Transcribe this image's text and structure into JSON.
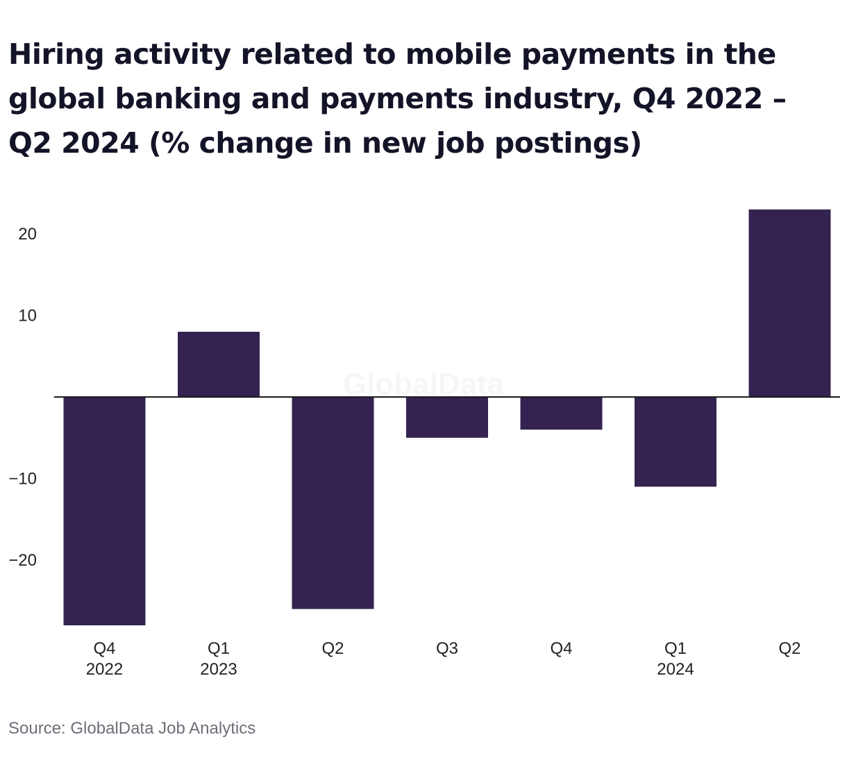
{
  "chart_data": {
    "type": "bar",
    "title": "Hiring activity related to mobile payments in the global banking and payments industry, Q4 2022 – Q2 2024 (% change in new job postings)",
    "categories": [
      {
        "quarter": "Q4",
        "year": "2022"
      },
      {
        "quarter": "Q1",
        "year": "2023"
      },
      {
        "quarter": "Q2",
        "year": ""
      },
      {
        "quarter": "Q3",
        "year": ""
      },
      {
        "quarter": "Q4",
        "year": ""
      },
      {
        "quarter": "Q1",
        "year": "2024"
      },
      {
        "quarter": "Q2",
        "year": ""
      }
    ],
    "values": [
      -28,
      8,
      -26,
      -5,
      -4,
      -11,
      23
    ],
    "ylim": [
      -28,
      23
    ],
    "yticks": [
      20,
      10,
      -10,
      -20
    ],
    "ytick_labels": [
      "20",
      "10",
      "−10",
      "−20"
    ],
    "bar_color": "#342350",
    "xlabel": "",
    "ylabel": "",
    "grid": false,
    "legend": "none"
  },
  "watermark": "GlobalData",
  "source": "Source: GlobalData Job Analytics"
}
